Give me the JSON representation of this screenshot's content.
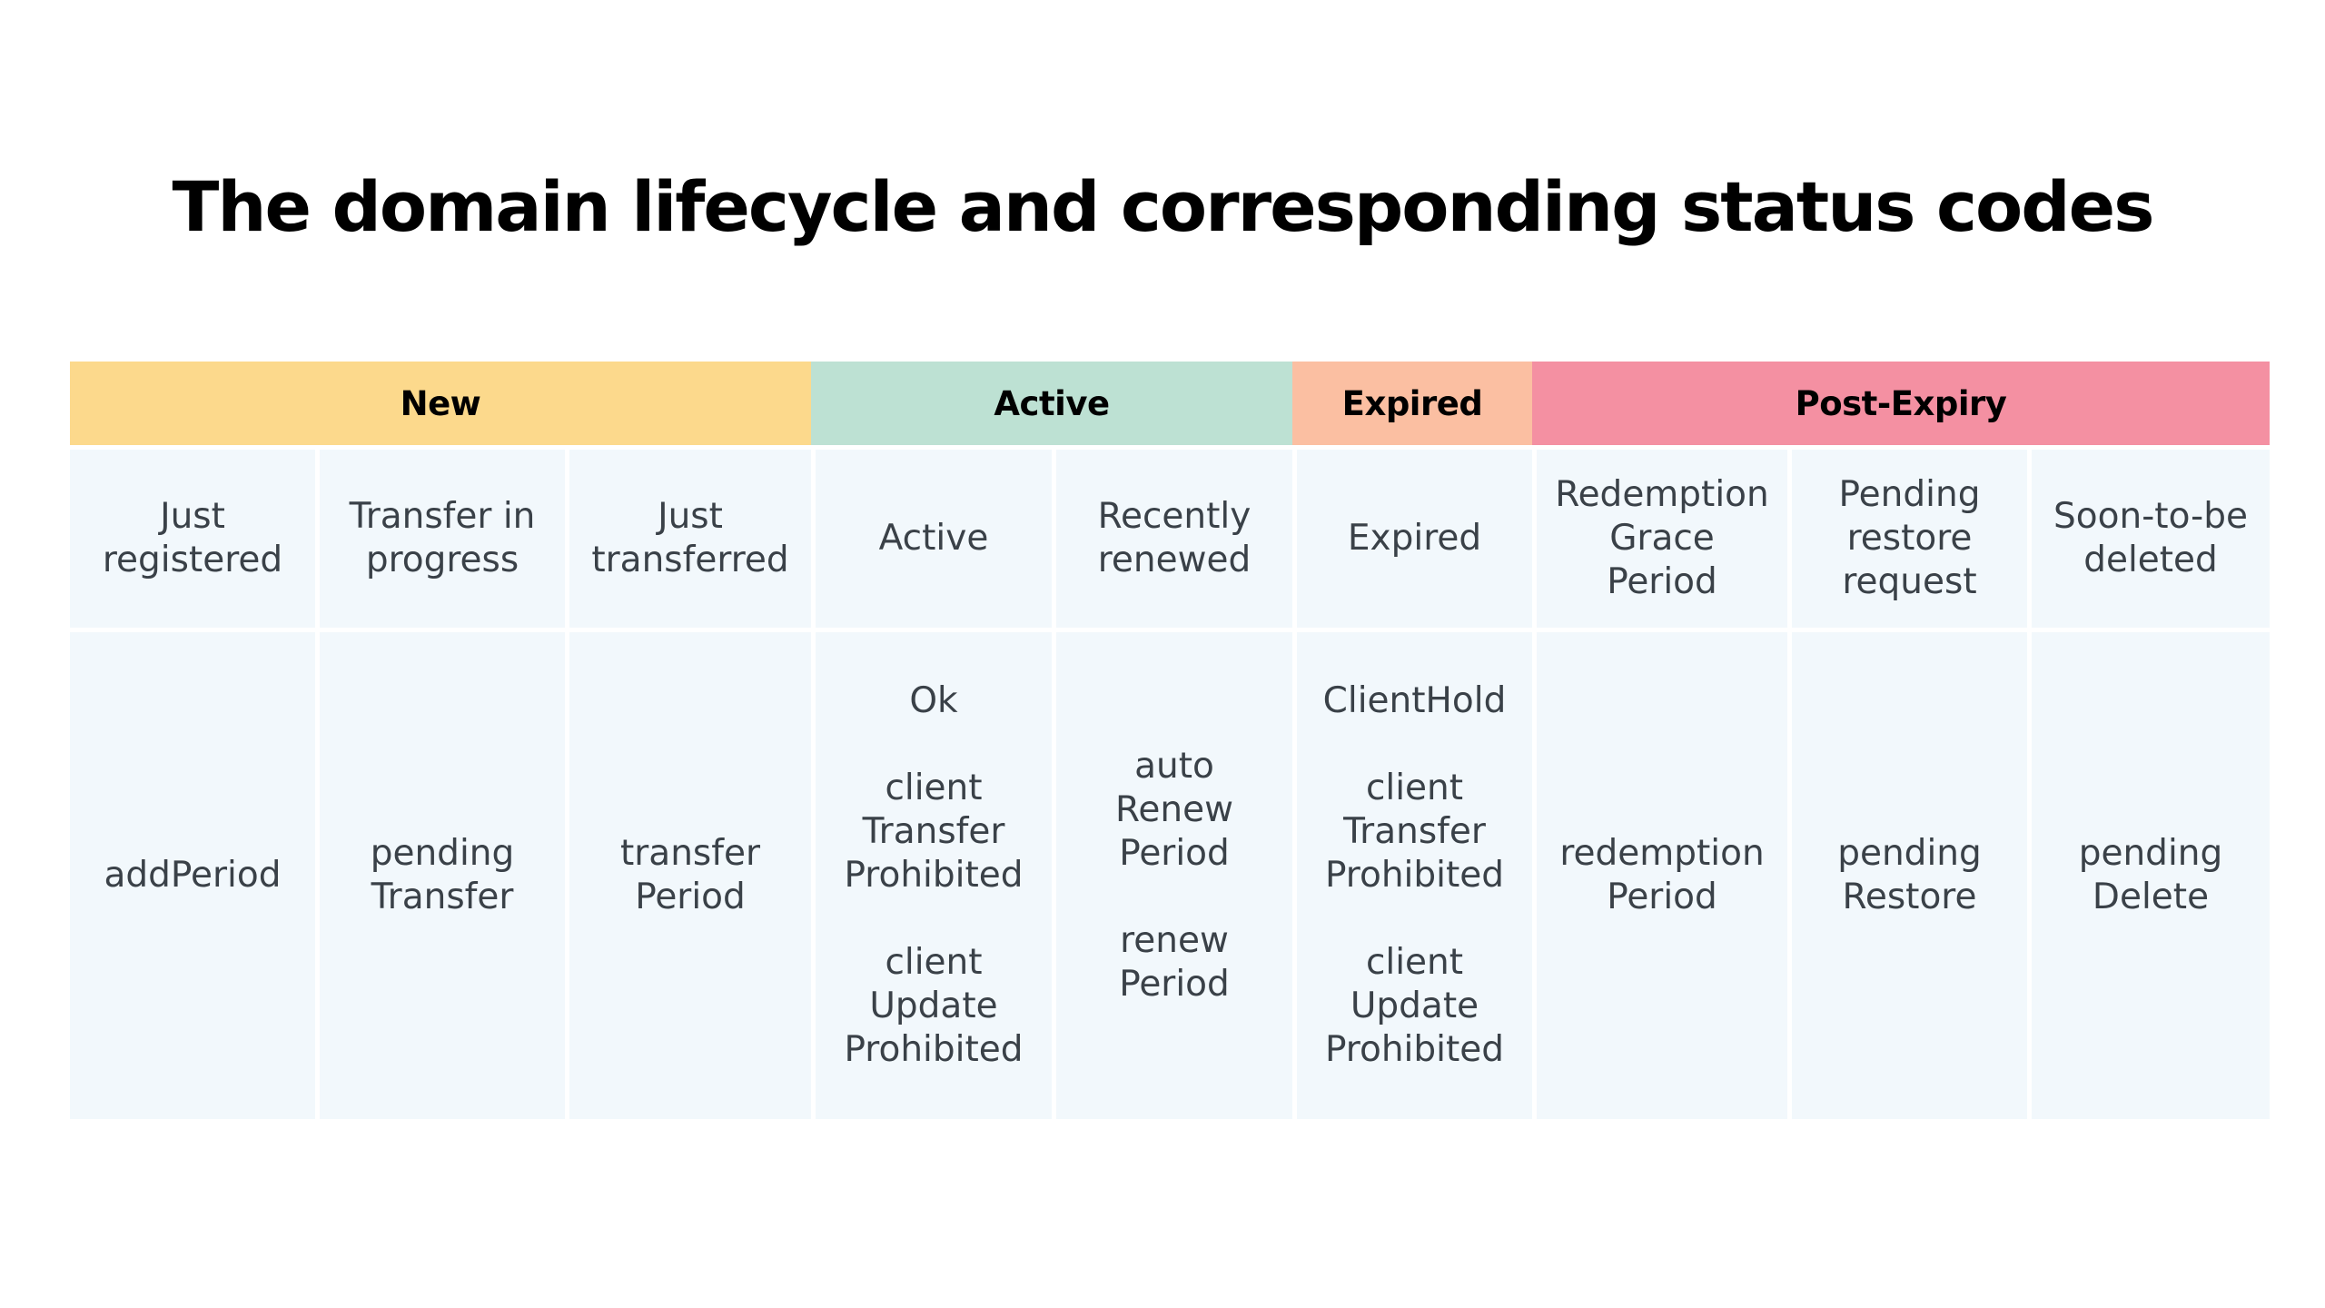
{
  "title": "The domain lifecycle and corresponding status codes",
  "phases": [
    {
      "label": "New",
      "color": "#fcd98c"
    },
    {
      "label": "Active",
      "color": "#bde1d3"
    },
    {
      "label": "Expired",
      "color": "#fbbfa2"
    },
    {
      "label": "Post-Expiry",
      "color": "#f490a2"
    }
  ],
  "states": [
    "Just\nregistered",
    "Transfer in\nprogress",
    "Just\ntransferred",
    "Active",
    "Recently\nrenewed",
    "Expired",
    "Redemption\nGrace\nPeriod",
    "Pending\nrestore\nrequest",
    "Soon-to-be\ndeleted"
  ],
  "status_codes": [
    "addPeriod",
    "pending\nTransfer",
    "transfer\nPeriod",
    "Ok\n\nclient\nTransfer\nProhibited\n\nclient\nUpdate\nProhibited",
    "auto\nRenew\nPeriod\n\nrenew\nPeriod",
    "ClientHold\n\nclient\nTransfer\nProhibited\n\nclient\nUpdate\nProhibited",
    "redemption\nPeriod",
    "pending\nRestore",
    "pending\nDelete"
  ]
}
